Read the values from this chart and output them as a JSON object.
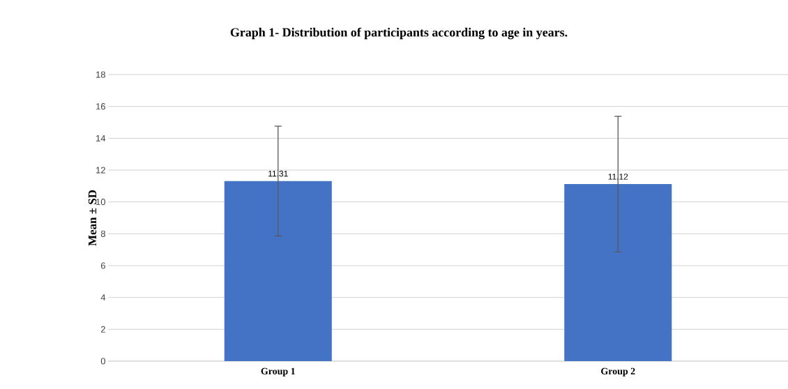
{
  "chart_data": {
    "type": "bar",
    "title": "Graph 1- Distribution of participants according to age in years.",
    "ylabel": "Mean ± SD",
    "categories": [
      "Group 1",
      "Group 2"
    ],
    "values": [
      11.31,
      11.12
    ],
    "errors": [
      3.45,
      4.26
    ],
    "value_labels": [
      "11.31",
      "11.12"
    ],
    "color": "#4472c4",
    "ylim": [
      0,
      18
    ],
    "yticks": [
      0,
      2,
      4,
      6,
      8,
      10,
      12,
      14,
      16,
      18
    ],
    "grid": "y"
  }
}
